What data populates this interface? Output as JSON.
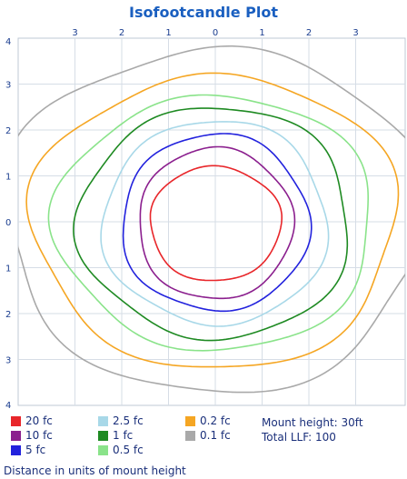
{
  "chart_data": {
    "type": "contour",
    "title": "Isofootcandle Plot",
    "x_ticks": [
      "3",
      "2",
      "1",
      "0",
      "1",
      "2",
      "3"
    ],
    "x_tick_values": [
      -3,
      -2,
      -1,
      0,
      1,
      2,
      3
    ],
    "y_ticks": [
      "4",
      "3",
      "2",
      "1",
      "0",
      "1",
      "2",
      "3",
      "4"
    ],
    "y_tick_values": [
      4,
      3,
      2,
      1,
      0,
      -1,
      -2,
      -3,
      -4
    ],
    "xlim": [
      -4.5,
      4.2
    ],
    "ylim": [
      -4,
      4
    ],
    "grid": true,
    "contours": [
      {
        "level": "20 fc",
        "color": "#e8262a",
        "rx": 1.4,
        "ry_top": 1.2,
        "ry_bottom": 1.3,
        "wobble": 0.03
      },
      {
        "level": "10 fc",
        "color": "#8b1f8e",
        "rx": 1.65,
        "ry_top": 1.6,
        "ry_bottom": 1.7,
        "wobble": 0.035
      },
      {
        "level": "5 fc",
        "color": "#2222dd",
        "rx": 2.0,
        "ry_top": 1.9,
        "ry_bottom": 1.95,
        "wobble": 0.04
      },
      {
        "level": "2.5 fc",
        "color": "#a8d8e8",
        "rx": 2.4,
        "ry_top": 2.2,
        "ry_bottom": 2.25,
        "wobble": 0.045
      },
      {
        "level": "1 fc",
        "color": "#1e8a22",
        "rx": 2.9,
        "ry_top": 2.5,
        "ry_bottom": 2.55,
        "wobble": 0.05
      },
      {
        "level": "0.5 fc",
        "color": "#8ae38a",
        "rx": 3.4,
        "ry_top": 2.75,
        "ry_bottom": 2.8,
        "wobble": 0.05
      },
      {
        "level": "0.2 fc",
        "color": "#f5a623",
        "rx": 3.9,
        "ry_top": 3.2,
        "ry_bottom": 3.2,
        "wobble": 0.055
      },
      {
        "level": "0.1 fc",
        "color": "#a9a9a9",
        "rx": 4.5,
        "ry_top": 3.8,
        "ry_bottom": 3.7,
        "wobble": 0.06
      }
    ],
    "legend": [
      {
        "label": "20 fc",
        "color": "#e8262a"
      },
      {
        "label": "10 fc",
        "color": "#8b1f8e"
      },
      {
        "label": "5 fc",
        "color": "#2222dd"
      },
      {
        "label": "2.5 fc",
        "color": "#a8d8e8"
      },
      {
        "label": "1 fc",
        "color": "#1e8a22"
      },
      {
        "label": "0.5 fc",
        "color": "#8ae38a"
      },
      {
        "label": "0.2 fc",
        "color": "#f5a623"
      },
      {
        "label": "0.1 fc",
        "color": "#a9a9a9"
      }
    ],
    "legend_placement": "bottom"
  },
  "info": {
    "mount_height": "Mount height: 30ft",
    "total_llf": "Total LLF: 100"
  },
  "footnote": "Distance in units of mount height"
}
